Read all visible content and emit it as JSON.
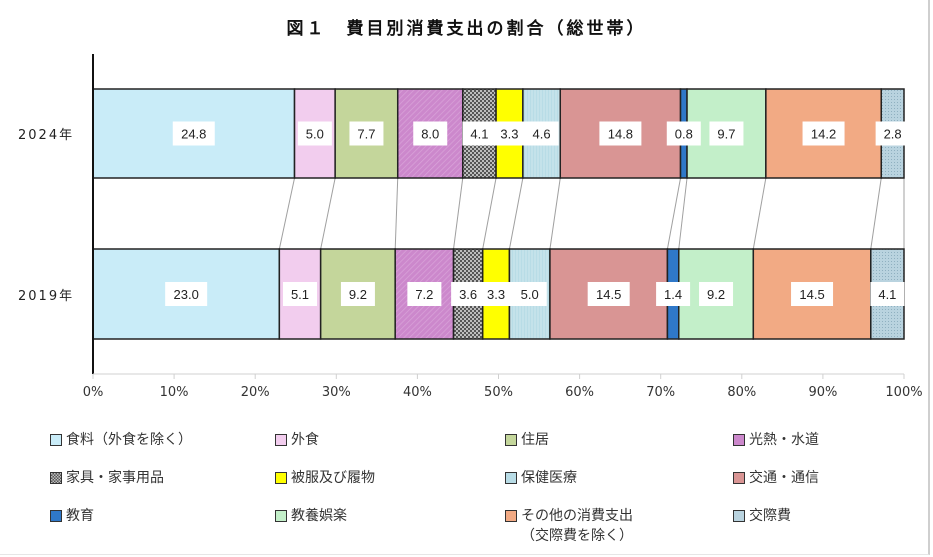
{
  "chart_data": {
    "type": "bar",
    "orientation": "horizontal",
    "stacked": "percent",
    "title": "図１　費目別消費支出の割合（総世帯）",
    "xlabel": "",
    "ylabel": "",
    "xlim": [
      0,
      100
    ],
    "x_ticks": [
      "0%",
      "10%",
      "20%",
      "30%",
      "40%",
      "50%",
      "60%",
      "70%",
      "80%",
      "90%",
      "100%"
    ],
    "categories": [
      "2024年",
      "2019年"
    ],
    "grid": false,
    "legend_position": "bottom",
    "series_lines_connecting_bars": true,
    "series": [
      {
        "name": "食料（外食を除く）",
        "color": "#c9ecf8",
        "pattern": "none",
        "values": [
          24.8,
          23.0
        ]
      },
      {
        "name": "外食",
        "color": "#f2cdee",
        "pattern": "none",
        "values": [
          5.0,
          5.1
        ]
      },
      {
        "name": "住居",
        "color": "#c4d69b",
        "pattern": "none",
        "values": [
          7.7,
          9.2
        ]
      },
      {
        "name": "光熱・水道",
        "color": "#cc88cc",
        "pattern": "diagonal",
        "values": [
          8.0,
          7.2
        ]
      },
      {
        "name": "家具・家事用品",
        "color": "#9a9a9a",
        "pattern": "checker",
        "values": [
          4.1,
          3.6
        ]
      },
      {
        "name": "被服及び履物",
        "color": "#ffff00",
        "pattern": "none",
        "values": [
          3.3,
          3.3
        ]
      },
      {
        "name": "保健医療",
        "color": "#b8dce6",
        "pattern": "vertical",
        "values": [
          4.6,
          5.0
        ]
      },
      {
        "name": "交通・通信",
        "color": "#d99594",
        "pattern": "none",
        "values": [
          14.8,
          14.5
        ]
      },
      {
        "name": "教育",
        "color": "#2f78c8",
        "pattern": "none",
        "values": [
          0.8,
          1.4
        ]
      },
      {
        "name": "教養娯楽",
        "color": "#c3efc9",
        "pattern": "none",
        "values": [
          9.7,
          9.2
        ]
      },
      {
        "name": "その他の消費支出（交際費を除く）",
        "color": "#f2aa84",
        "pattern": "none",
        "values": [
          14.2,
          14.5
        ]
      },
      {
        "name": "交際費",
        "color": "#b9d3df",
        "pattern": "dotted",
        "values": [
          2.8,
          4.1
        ]
      }
    ]
  },
  "title": "図１　費目別消費支出の割合（総世帯）",
  "legend": [
    {
      "label": "食料（外食を除く）",
      "color": "#c9ecf8"
    },
    {
      "label": "外食",
      "color": "#f2cdee"
    },
    {
      "label": "住居",
      "color": "#c4d69b"
    },
    {
      "label": "光熱・水道",
      "color": "#cc88cc"
    },
    {
      "label": "家具・家事用品",
      "color": "#9a9a9a"
    },
    {
      "label": "被服及び履物",
      "color": "#ffff00"
    },
    {
      "label": "保健医療",
      "color": "#b8dce6"
    },
    {
      "label": "交通・通信",
      "color": "#d99594"
    },
    {
      "label": "教育",
      "color": "#2f78c8"
    },
    {
      "label": "教養娯楽",
      "color": "#c3efc9"
    },
    {
      "label": "その他の消費支出\n（交際費を除く）",
      "color": "#f2aa84"
    },
    {
      "label": "交際費",
      "color": "#b9d3df"
    }
  ]
}
